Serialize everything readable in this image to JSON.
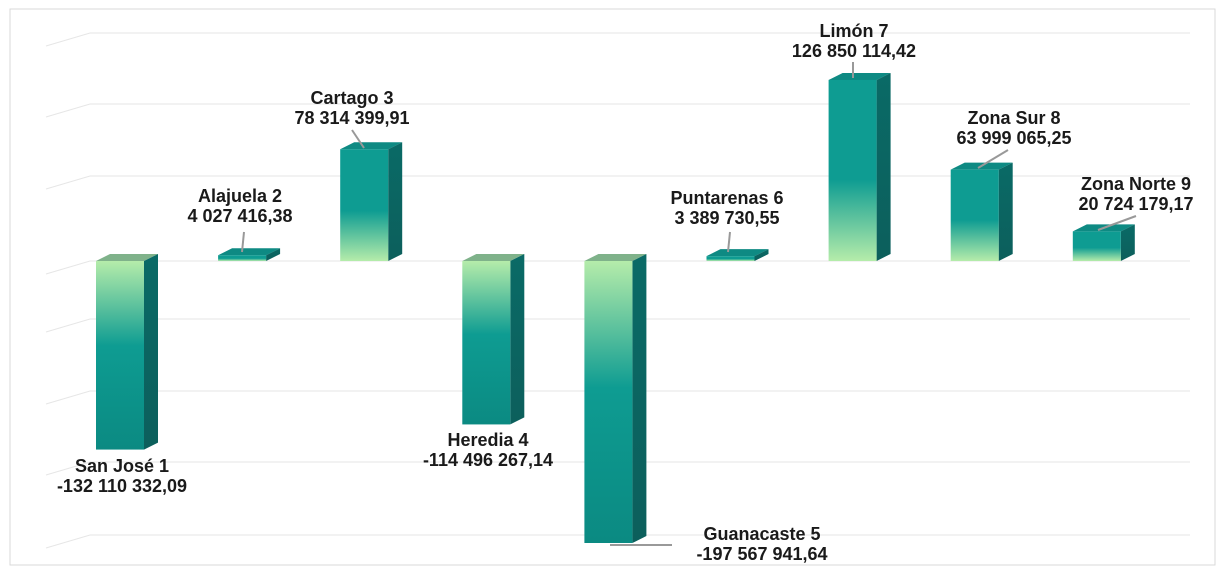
{
  "chart_data": {
    "type": "bar",
    "style": "3d-column",
    "title": "",
    "xlabel": "",
    "ylabel": "",
    "grid": true,
    "legend": "none",
    "ylim": [
      -200000000,
      150000000
    ],
    "colors": {
      "top": "#a9e8a0",
      "mid": "#0c9a90",
      "dark": "#0a6b66",
      "grid": "#e6e6e6",
      "leader": "#999999"
    },
    "series": [
      {
        "values": [
          -132110332.09,
          4027416.38,
          78314399.91,
          -114496267.14,
          -197567941.64,
          3389730.55,
          126850114.42,
          63999065.25,
          20724179.17
        ]
      }
    ],
    "categories": [
      "San José 1",
      "Alajuela 2",
      "Cartago 3",
      "Heredia 4",
      "Guanacaste 5",
      "Puntarenas 6",
      "Limón 7",
      "Zona Sur 8",
      "Zona Norte 9"
    ],
    "data_labels": [
      "-132 110 332,09",
      "4 027 416,38",
      "78 314 399,91",
      "-114 496 267,14",
      "-197 567 941,64",
      "3 389 730,55",
      "126 850 114,42",
      "63 999 065,25",
      "20 724 179,17"
    ]
  }
}
